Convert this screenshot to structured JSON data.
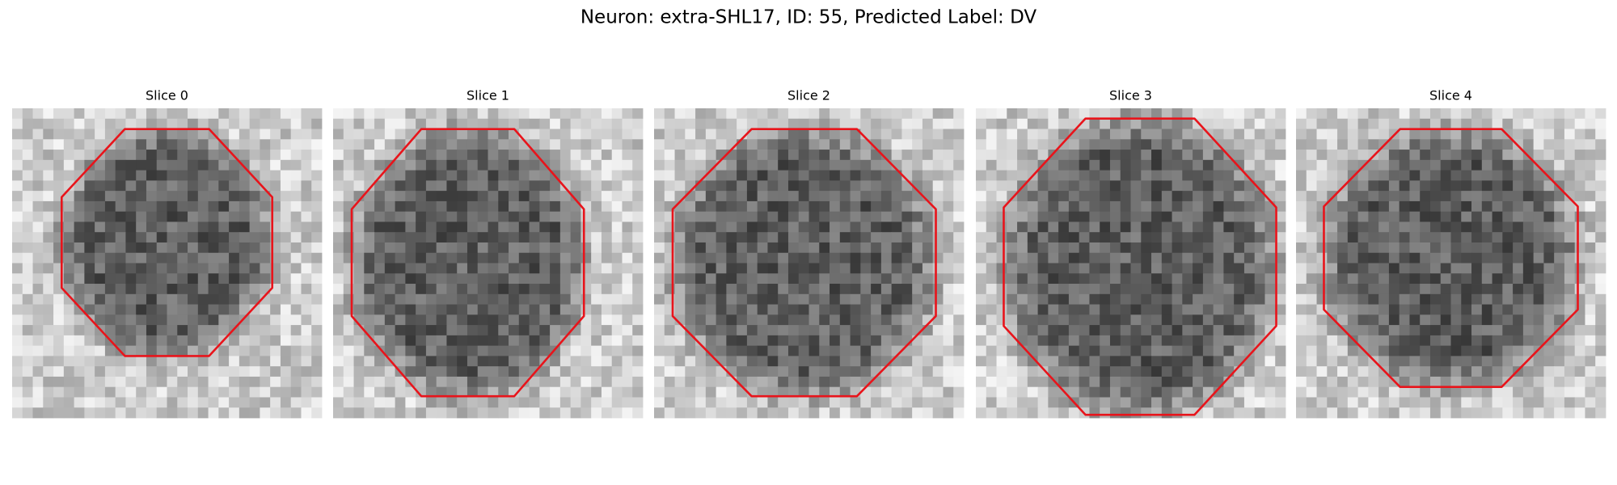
{
  "header": {
    "title": "Neuron: extra-SHL17, ID: 55, Predicted Label: DV"
  },
  "panels": [
    {
      "title": "Slice 0"
    },
    {
      "title": "Slice 1"
    },
    {
      "title": "Slice 2"
    },
    {
      "title": "Slice 3"
    },
    {
      "title": "Slice 4"
    }
  ]
}
